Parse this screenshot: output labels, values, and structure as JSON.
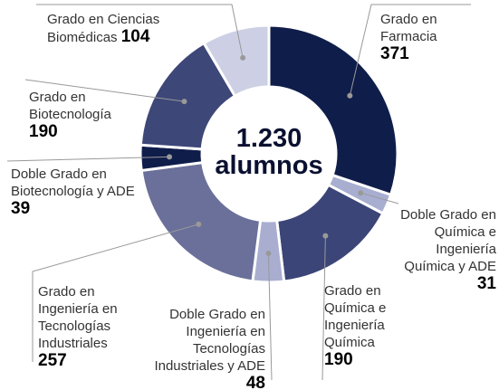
{
  "chart_data": {
    "type": "pie",
    "center_text": "1.230 alumnos",
    "categories": [
      "Grado en Farmacia",
      "Doble Grado en Química e Ingeniería Química y ADE",
      "Grado en Química e Ingeniería Química",
      "Doble Grado en Ingeniería en Tecnologías Industriales y ADE",
      "Grado en Ingeniería en Tecnologías Industriales",
      "Doble Grado en Biotecnología y ADE",
      "Grado en Biotecnología",
      "Grado en Ciencias Biomédicas"
    ],
    "values": [
      371,
      31,
      190,
      48,
      257,
      39,
      190,
      104
    ],
    "colors": [
      "#0f1d4a",
      "#a8aed0",
      "#3b4577",
      "#a9aed0",
      "#6a7099",
      "#0f1d4a",
      "#3d4778",
      "#cdd0e5"
    ]
  }
}
